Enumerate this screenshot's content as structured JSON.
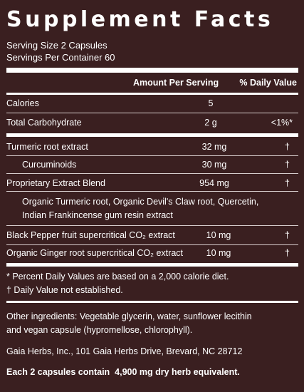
{
  "title": "Supplement Facts",
  "serving": {
    "size": "Serving Size 2 Capsules",
    "per_container": "Servings Per Container 60"
  },
  "table_header": {
    "amount": "Amount Per Serving",
    "dv": "% Daily Value"
  },
  "rows": [
    {
      "name": "Calories",
      "amount": "5",
      "dv": ""
    },
    {
      "name": "Total Carbohydrate",
      "amount": "2 g",
      "dv": "<1%*"
    },
    {
      "name": "Turmeric root extract",
      "amount": "32 mg",
      "dv": "†"
    },
    {
      "name": "Curcuminoids",
      "amount": "30 mg",
      "dv": "†"
    },
    {
      "name": "Proprietary Extract Blend",
      "amount": "954 mg",
      "dv": "†"
    },
    {
      "name": "Black Pepper fruit supercritical CO₂ extract",
      "amount": "10 mg",
      "dv": "†"
    },
    {
      "name": "Organic Ginger root supercritical CO₂ extract",
      "amount": "10 mg",
      "dv": "†"
    }
  ],
  "blend_description": [
    "Organic Turmeric root, Organic Devil's Claw root, Quercetin,",
    "Indian Frankincense gum resin extract"
  ],
  "footnotes": [
    "* Percent Daily Values are based on a 2,000 calorie diet.",
    "† Daily Value not established."
  ],
  "other_ingredients": [
    "Other ingredients: Vegetable glycerin, water, sunflower lecithin",
    "and vegan capsule (hypromellose, chlorophyll)."
  ],
  "manufacturer": "Gaia Herbs, Inc., 101 Gaia Herbs Drive, Brevard, NC 28712",
  "equivalent": "Each 2 capsules contain  4,900 mg dry herb equivalent.",
  "colors": {
    "background": "#3a1f20",
    "text": "#ffffff",
    "rule": "#d7cdcd"
  }
}
